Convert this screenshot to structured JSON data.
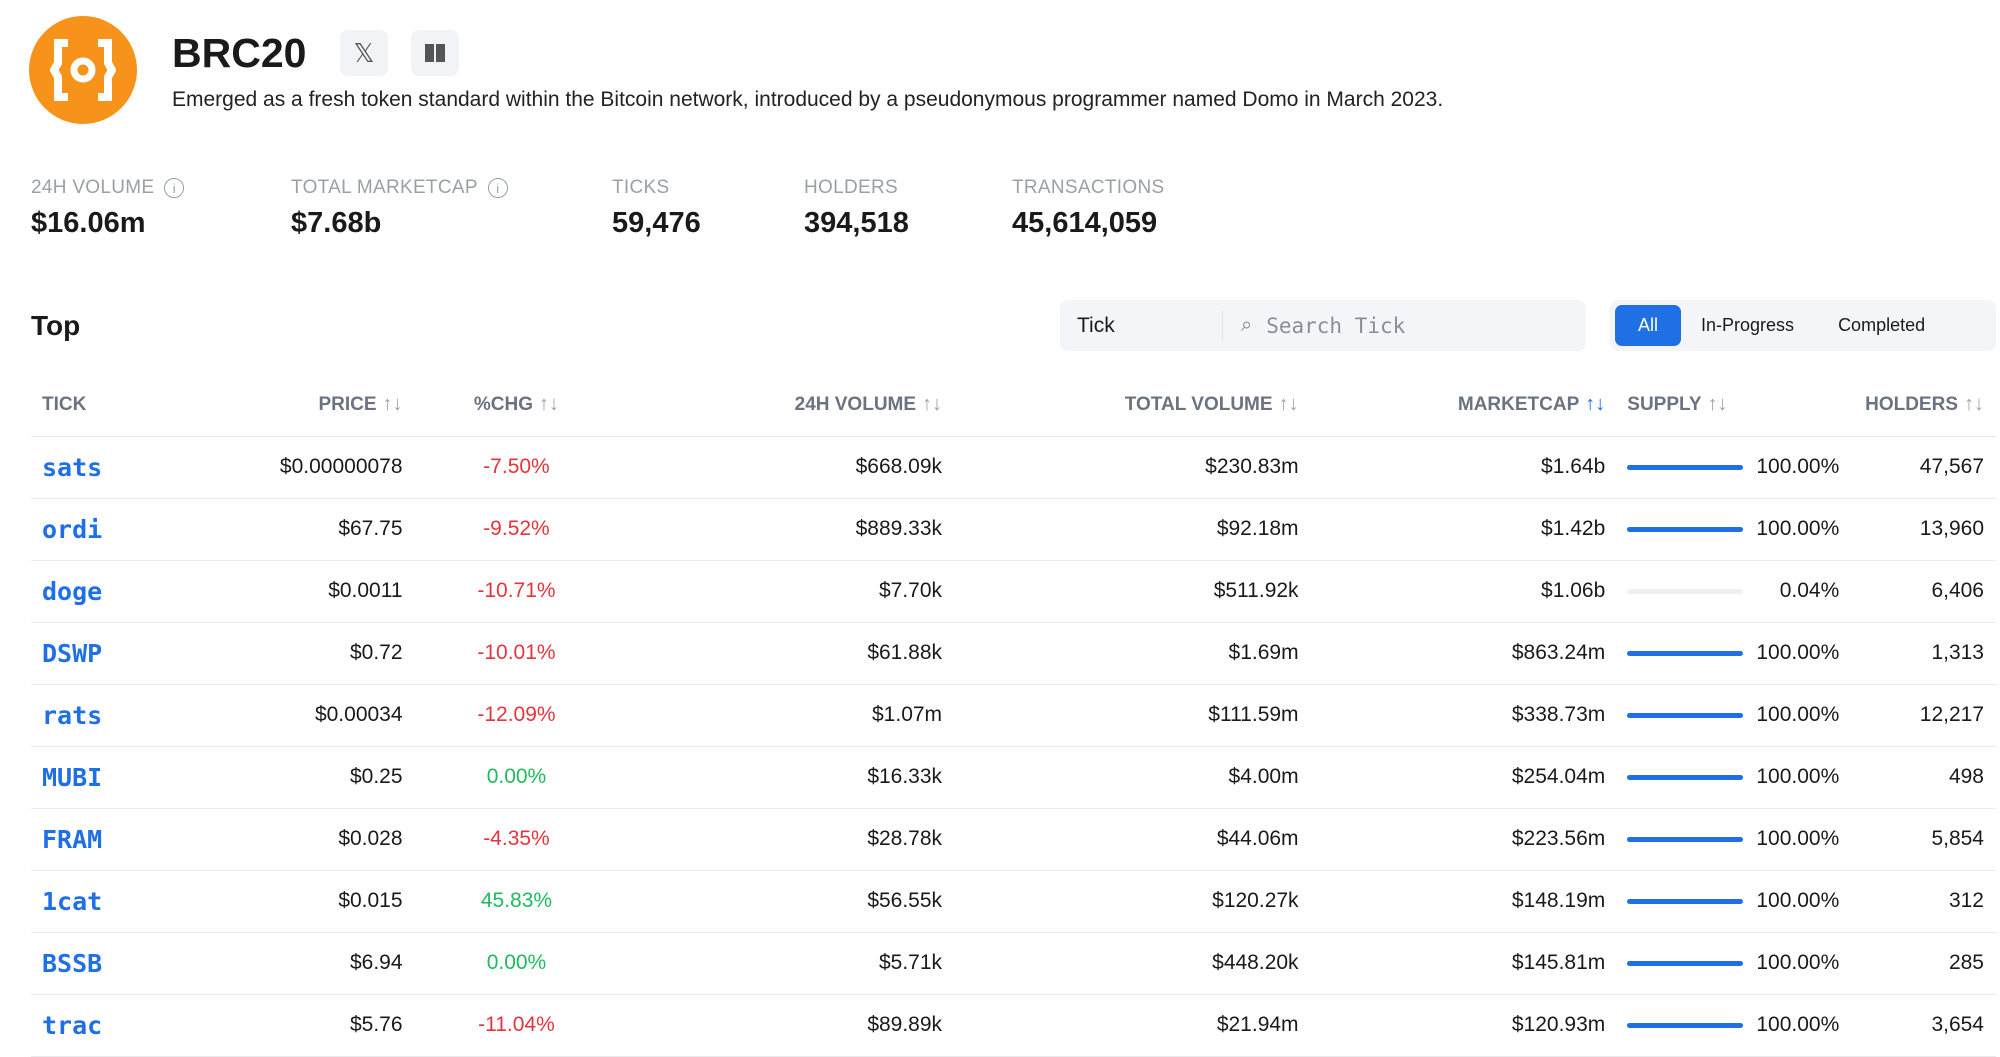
{
  "header": {
    "title": "BRC20",
    "description": "Emerged as a fresh token standard within the Bitcoin network, introduced by a pseudonymous programmer named Domo in March 2023.",
    "logo_icon": "brc20-logo",
    "social": [
      "x-icon",
      "book-icon"
    ]
  },
  "stats": [
    {
      "label": "24H VOLUME",
      "value": "$16.06m",
      "info": true
    },
    {
      "label": "TOTAL MARKETCAP",
      "value": "$7.68b",
      "info": true
    },
    {
      "label": "TICKS",
      "value": "59,476"
    },
    {
      "label": "HOLDERS",
      "value": "394,518"
    },
    {
      "label": "TRANSACTIONS",
      "value": "45,614,059"
    }
  ],
  "section": {
    "title": "Top",
    "search_type": "Tick",
    "search_placeholder": "Search Tick",
    "filters": [
      "All",
      "In-Progress",
      "Completed"
    ],
    "active_filter": "All"
  },
  "table": {
    "columns": [
      "TICK",
      "PRICE",
      "%CHG",
      "24H VOLUME",
      "TOTAL VOLUME",
      "MARKETCAP",
      "SUPPLY",
      "HOLDERS"
    ],
    "sorted_column": "MARKETCAP",
    "rows": [
      {
        "tick": "sats",
        "price": "$0.00000078",
        "chg": "-7.50%",
        "vol24": "$668.09k",
        "total": "$230.83m",
        "mcap": "$1.64b",
        "supply": "100.00%",
        "supply_pct": 100,
        "holders": "47,567"
      },
      {
        "tick": "ordi",
        "price": "$67.75",
        "chg": "-9.52%",
        "vol24": "$889.33k",
        "total": "$92.18m",
        "mcap": "$1.42b",
        "supply": "100.00%",
        "supply_pct": 100,
        "holders": "13,960"
      },
      {
        "tick": "doge",
        "price": "$0.0011",
        "chg": "-10.71%",
        "vol24": "$7.70k",
        "total": "$511.92k",
        "mcap": "$1.06b",
        "supply": "0.04%",
        "supply_pct": 0.04,
        "holders": "6,406"
      },
      {
        "tick": "DSWP",
        "price": "$0.72",
        "chg": "-10.01%",
        "vol24": "$61.88k",
        "total": "$1.69m",
        "mcap": "$863.24m",
        "supply": "100.00%",
        "supply_pct": 100,
        "holders": "1,313"
      },
      {
        "tick": "rats",
        "price": "$0.00034",
        "chg": "-12.09%",
        "vol24": "$1.07m",
        "total": "$111.59m",
        "mcap": "$338.73m",
        "supply": "100.00%",
        "supply_pct": 100,
        "holders": "12,217"
      },
      {
        "tick": "MUBI",
        "price": "$0.25",
        "chg": "0.00%",
        "vol24": "$16.33k",
        "total": "$4.00m",
        "mcap": "$254.04m",
        "supply": "100.00%",
        "supply_pct": 100,
        "holders": "498"
      },
      {
        "tick": "FRAM",
        "price": "$0.028",
        "chg": "-4.35%",
        "vol24": "$28.78k",
        "total": "$44.06m",
        "mcap": "$223.56m",
        "supply": "100.00%",
        "supply_pct": 100,
        "holders": "5,854"
      },
      {
        "tick": "1cat",
        "price": "$0.015",
        "chg": "45.83%",
        "vol24": "$56.55k",
        "total": "$120.27k",
        "mcap": "$148.19m",
        "supply": "100.00%",
        "supply_pct": 100,
        "holders": "312"
      },
      {
        "tick": "BSSB",
        "price": "$6.94",
        "chg": "0.00%",
        "vol24": "$5.71k",
        "total": "$448.20k",
        "mcap": "$145.81m",
        "supply": "100.00%",
        "supply_pct": 100,
        "holders": "285"
      },
      {
        "tick": "trac",
        "price": "$5.76",
        "chg": "-11.04%",
        "vol24": "$89.89k",
        "total": "$21.94m",
        "mcap": "$120.93m",
        "supply": "100.00%",
        "supply_pct": 100,
        "holders": "3,654"
      }
    ]
  },
  "colors": {
    "accent": "#1f6fe5",
    "negative": "#e5343d",
    "positive": "#1fbb5c",
    "logo": "#f7931a"
  }
}
